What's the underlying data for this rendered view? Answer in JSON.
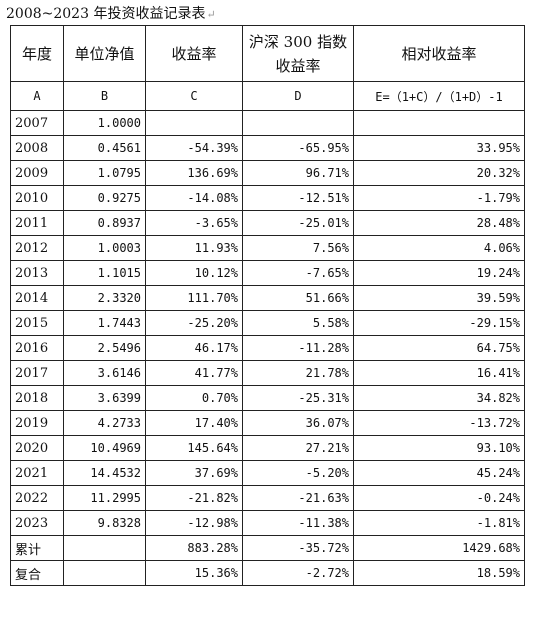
{
  "title": "2008~2023 年投资收益记录表",
  "headers": [
    "年度",
    "单位净值",
    "收益率",
    "沪深 300 指数收益率",
    "相对收益率"
  ],
  "subheaders": [
    "A",
    "B",
    "C",
    "D",
    "E=（1+C）/（1+D）-1"
  ],
  "rows": [
    {
      "year": "2007",
      "nav": "1.0000",
      "ret": "",
      "idx": "",
      "rel": ""
    },
    {
      "year": "2008",
      "nav": "0.4561",
      "ret": "-54.39%",
      "idx": "-65.95%",
      "rel": "33.95%"
    },
    {
      "year": "2009",
      "nav": "1.0795",
      "ret": "136.69%",
      "idx": "96.71%",
      "rel": "20.32%"
    },
    {
      "year": "2010",
      "nav": "0.9275",
      "ret": "-14.08%",
      "idx": "-12.51%",
      "rel": "-1.79%"
    },
    {
      "year": "2011",
      "nav": "0.8937",
      "ret": "-3.65%",
      "idx": "-25.01%",
      "rel": "28.48%"
    },
    {
      "year": "2012",
      "nav": "1.0003",
      "ret": "11.93%",
      "idx": "7.56%",
      "rel": "4.06%"
    },
    {
      "year": "2013",
      "nav": "1.1015",
      "ret": "10.12%",
      "idx": "-7.65%",
      "rel": "19.24%"
    },
    {
      "year": "2014",
      "nav": "2.3320",
      "ret": "111.70%",
      "idx": "51.66%",
      "rel": "39.59%"
    },
    {
      "year": "2015",
      "nav": "1.7443",
      "ret": "-25.20%",
      "idx": "5.58%",
      "rel": "-29.15%"
    },
    {
      "year": "2016",
      "nav": "2.5496",
      "ret": "46.17%",
      "idx": "-11.28%",
      "rel": "64.75%"
    },
    {
      "year": "2017",
      "nav": "3.6146",
      "ret": "41.77%",
      "idx": "21.78%",
      "rel": "16.41%"
    },
    {
      "year": "2018",
      "nav": "3.6399",
      "ret": "0.70%",
      "idx": "-25.31%",
      "rel": "34.82%"
    },
    {
      "year": "2019",
      "nav": "4.2733",
      "ret": "17.40%",
      "idx": "36.07%",
      "rel": "-13.72%"
    },
    {
      "year": "2020",
      "nav": "10.4969",
      "ret": "145.64%",
      "idx": "27.21%",
      "rel": "93.10%"
    },
    {
      "year": "2021",
      "nav": "14.4532",
      "ret": "37.69%",
      "idx": "-5.20%",
      "rel": "45.24%"
    },
    {
      "year": "2022",
      "nav": "11.2995",
      "ret": "-21.82%",
      "idx": "-21.63%",
      "rel": "-0.24%"
    },
    {
      "year": "2023",
      "nav": "9.8328",
      "ret": "-12.98%",
      "idx": "-11.38%",
      "rel": "-1.81%"
    }
  ],
  "totals": [
    {
      "label": "累计",
      "nav": "",
      "ret": "883.28%",
      "idx": "-35.72%",
      "rel": "1429.68%"
    },
    {
      "label": "复合",
      "nav": "",
      "ret": "15.36%",
      "idx": "-2.72%",
      "rel": "18.59%"
    }
  ]
}
